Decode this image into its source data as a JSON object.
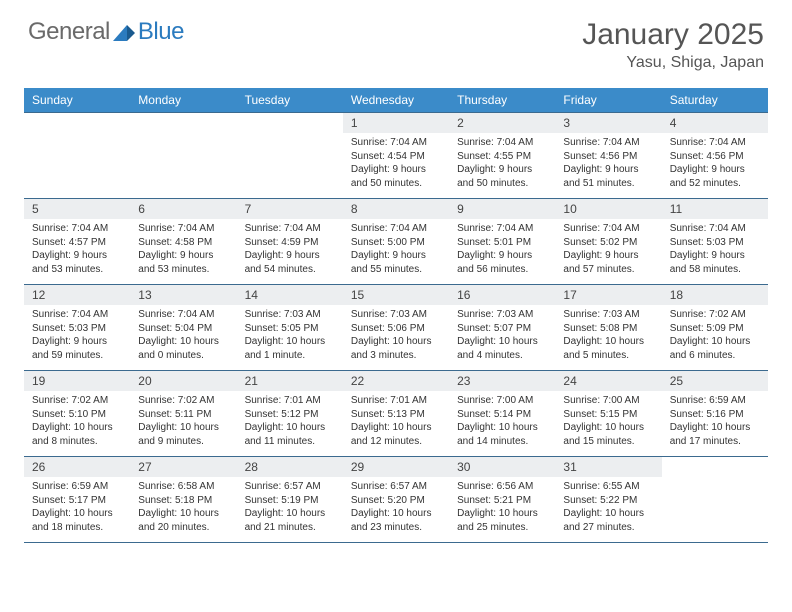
{
  "logo": {
    "text1": "General",
    "text2": "Blue"
  },
  "title": "January 2025",
  "location": "Yasu, Shiga, Japan",
  "colors": {
    "header_bg": "#3b8bc9",
    "header_text": "#ffffff",
    "daynum_bg": "#eceef0",
    "border": "#3b6a8f",
    "logo_gray": "#6a6a6a",
    "logo_blue": "#2b7bbf"
  },
  "weekdays": [
    "Sunday",
    "Monday",
    "Tuesday",
    "Wednesday",
    "Thursday",
    "Friday",
    "Saturday"
  ],
  "weeks": [
    [
      null,
      null,
      null,
      {
        "n": "1",
        "sr": "7:04 AM",
        "ss": "4:54 PM",
        "dl": "9 hours and 50 minutes."
      },
      {
        "n": "2",
        "sr": "7:04 AM",
        "ss": "4:55 PM",
        "dl": "9 hours and 50 minutes."
      },
      {
        "n": "3",
        "sr": "7:04 AM",
        "ss": "4:56 PM",
        "dl": "9 hours and 51 minutes."
      },
      {
        "n": "4",
        "sr": "7:04 AM",
        "ss": "4:56 PM",
        "dl": "9 hours and 52 minutes."
      }
    ],
    [
      {
        "n": "5",
        "sr": "7:04 AM",
        "ss": "4:57 PM",
        "dl": "9 hours and 53 minutes."
      },
      {
        "n": "6",
        "sr": "7:04 AM",
        "ss": "4:58 PM",
        "dl": "9 hours and 53 minutes."
      },
      {
        "n": "7",
        "sr": "7:04 AM",
        "ss": "4:59 PM",
        "dl": "9 hours and 54 minutes."
      },
      {
        "n": "8",
        "sr": "7:04 AM",
        "ss": "5:00 PM",
        "dl": "9 hours and 55 minutes."
      },
      {
        "n": "9",
        "sr": "7:04 AM",
        "ss": "5:01 PM",
        "dl": "9 hours and 56 minutes."
      },
      {
        "n": "10",
        "sr": "7:04 AM",
        "ss": "5:02 PM",
        "dl": "9 hours and 57 minutes."
      },
      {
        "n": "11",
        "sr": "7:04 AM",
        "ss": "5:03 PM",
        "dl": "9 hours and 58 minutes."
      }
    ],
    [
      {
        "n": "12",
        "sr": "7:04 AM",
        "ss": "5:03 PM",
        "dl": "9 hours and 59 minutes."
      },
      {
        "n": "13",
        "sr": "7:04 AM",
        "ss": "5:04 PM",
        "dl": "10 hours and 0 minutes."
      },
      {
        "n": "14",
        "sr": "7:03 AM",
        "ss": "5:05 PM",
        "dl": "10 hours and 1 minute."
      },
      {
        "n": "15",
        "sr": "7:03 AM",
        "ss": "5:06 PM",
        "dl": "10 hours and 3 minutes."
      },
      {
        "n": "16",
        "sr": "7:03 AM",
        "ss": "5:07 PM",
        "dl": "10 hours and 4 minutes."
      },
      {
        "n": "17",
        "sr": "7:03 AM",
        "ss": "5:08 PM",
        "dl": "10 hours and 5 minutes."
      },
      {
        "n": "18",
        "sr": "7:02 AM",
        "ss": "5:09 PM",
        "dl": "10 hours and 6 minutes."
      }
    ],
    [
      {
        "n": "19",
        "sr": "7:02 AM",
        "ss": "5:10 PM",
        "dl": "10 hours and 8 minutes."
      },
      {
        "n": "20",
        "sr": "7:02 AM",
        "ss": "5:11 PM",
        "dl": "10 hours and 9 minutes."
      },
      {
        "n": "21",
        "sr": "7:01 AM",
        "ss": "5:12 PM",
        "dl": "10 hours and 11 minutes."
      },
      {
        "n": "22",
        "sr": "7:01 AM",
        "ss": "5:13 PM",
        "dl": "10 hours and 12 minutes."
      },
      {
        "n": "23",
        "sr": "7:00 AM",
        "ss": "5:14 PM",
        "dl": "10 hours and 14 minutes."
      },
      {
        "n": "24",
        "sr": "7:00 AM",
        "ss": "5:15 PM",
        "dl": "10 hours and 15 minutes."
      },
      {
        "n": "25",
        "sr": "6:59 AM",
        "ss": "5:16 PM",
        "dl": "10 hours and 17 minutes."
      }
    ],
    [
      {
        "n": "26",
        "sr": "6:59 AM",
        "ss": "5:17 PM",
        "dl": "10 hours and 18 minutes."
      },
      {
        "n": "27",
        "sr": "6:58 AM",
        "ss": "5:18 PM",
        "dl": "10 hours and 20 minutes."
      },
      {
        "n": "28",
        "sr": "6:57 AM",
        "ss": "5:19 PM",
        "dl": "10 hours and 21 minutes."
      },
      {
        "n": "29",
        "sr": "6:57 AM",
        "ss": "5:20 PM",
        "dl": "10 hours and 23 minutes."
      },
      {
        "n": "30",
        "sr": "6:56 AM",
        "ss": "5:21 PM",
        "dl": "10 hours and 25 minutes."
      },
      {
        "n": "31",
        "sr": "6:55 AM",
        "ss": "5:22 PM",
        "dl": "10 hours and 27 minutes."
      },
      null
    ]
  ],
  "labels": {
    "sunrise": "Sunrise:",
    "sunset": "Sunset:",
    "daylight": "Daylight:"
  }
}
